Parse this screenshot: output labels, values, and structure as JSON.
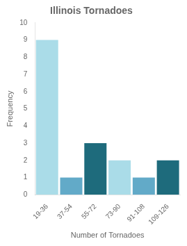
{
  "chart_data": {
    "type": "bar",
    "title": "Illinois Tornadoes",
    "xlabel": "Number of Tornadoes",
    "ylabel": "Frequency",
    "categories": [
      "19-36",
      "37-54",
      "55-72",
      "73-90",
      "91-108",
      "109-126"
    ],
    "values": [
      9,
      1,
      3,
      2,
      1,
      2
    ],
    "colors": [
      "#aadce8",
      "#62aac8",
      "#1e6b7c",
      "#aadce8",
      "#62aac8",
      "#1e6b7c"
    ],
    "ylim": [
      0,
      10
    ],
    "yticks": [
      0,
      1,
      2,
      3,
      4,
      5,
      6,
      7,
      8,
      9,
      10
    ],
    "grid": false
  }
}
